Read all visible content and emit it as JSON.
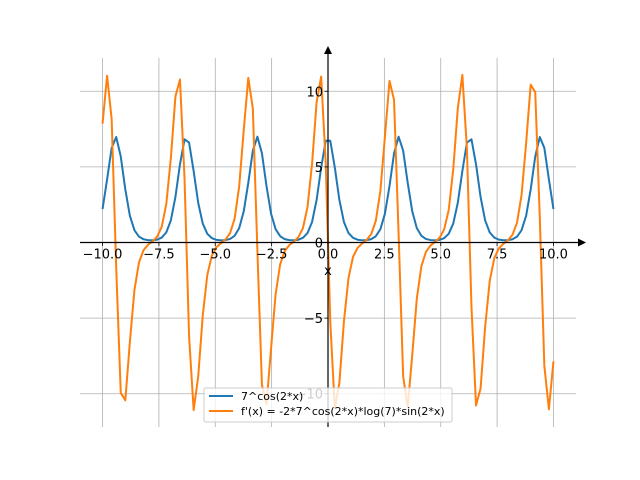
{
  "chart_data": {
    "type": "line",
    "title": "",
    "xlabel": "x",
    "ylabel": "",
    "xlim": [
      -11,
      11
    ],
    "ylim": [
      -12.2,
      12.2
    ],
    "grid": true,
    "legend_placement": "bottom-center",
    "x_sampling": {
      "start": -10,
      "stop": 10,
      "num_points": 100
    },
    "xticks": [
      -10,
      -7.5,
      -5,
      -2.5,
      0,
      2.5,
      5,
      7.5,
      10
    ],
    "xtick_labels": [
      "−10.0",
      "−7.5",
      "−5.0",
      "−2.5",
      "0.0",
      "2.5",
      "5.0",
      "7.5",
      "10.0"
    ],
    "yticks": [
      -10,
      -5,
      0,
      5,
      10
    ],
    "ytick_labels": [
      "−10",
      "−5",
      "0",
      "5",
      "10"
    ],
    "series": [
      {
        "name": "7^cos(2*x)",
        "color": "#1f77b4",
        "expr": "f"
      },
      {
        "name": "f'(x) = -2*7^cos(2*x)*log(7)*sin(2*x)",
        "color": "#ff7f0e",
        "expr": "df"
      }
    ]
  }
}
